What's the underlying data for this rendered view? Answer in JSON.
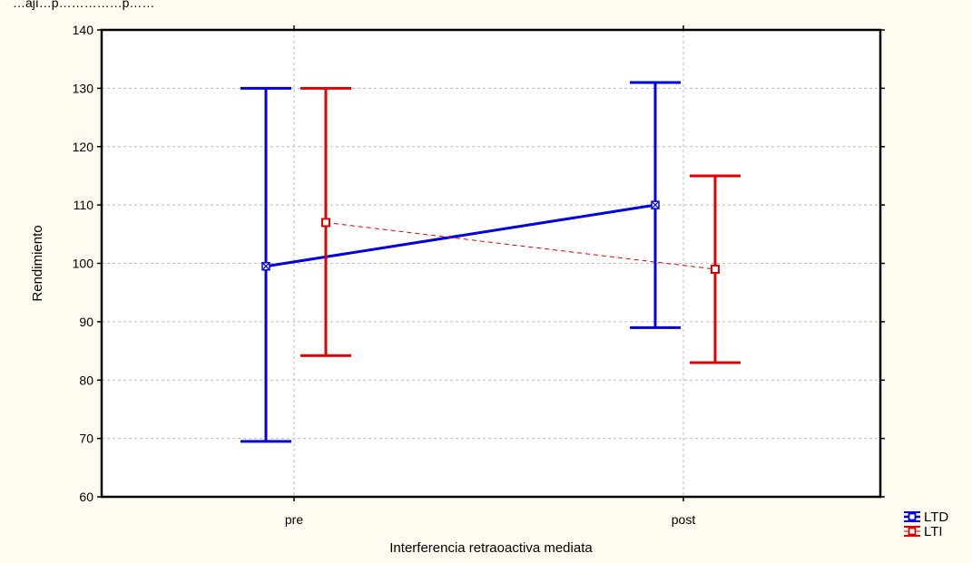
{
  "top_text": "…ají…p……………p……",
  "chart_data": {
    "type": "line",
    "categories": [
      "pre",
      "post"
    ],
    "xlabel": "Interferencia retraoactiva mediata",
    "ylabel": "Rendimiento",
    "ylim": [
      60,
      140
    ],
    "yticks": [
      60,
      70,
      80,
      90,
      100,
      110,
      120,
      130,
      140
    ],
    "grid": true,
    "legend_position": "bottom-right",
    "series": [
      {
        "name": "LTD",
        "color": "#0000e0",
        "marker": "x-square",
        "line_style": "solid",
        "values": [
          99.5,
          110
        ],
        "lower": [
          69.5,
          89
        ],
        "upper": [
          130,
          131
        ]
      },
      {
        "name": "LTI",
        "color": "#e00000",
        "marker": "square",
        "line_style": "dashed",
        "values": [
          107,
          99
        ],
        "lower": [
          84.2,
          83
        ],
        "upper": [
          130,
          115
        ]
      }
    ]
  }
}
